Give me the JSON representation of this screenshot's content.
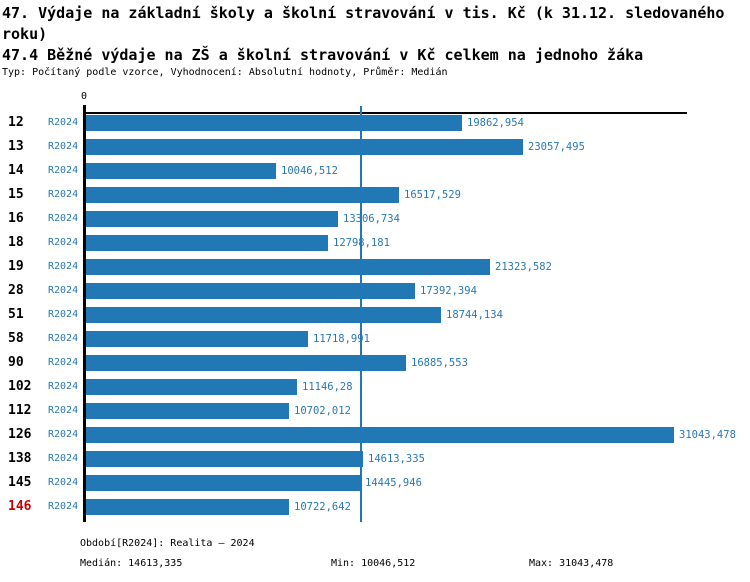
{
  "header": {
    "title_line1": "47. Výdaje na základní školy a školní stravování v tis. Kč (k 31.12. sledovaného",
    "title_line2": "roku)",
    "subtitle": "47.4 Běžné výdaje na ZŠ a školní stravování v Kč celkem na jednoho žáka",
    "meta": "Typ: Počítaný podle vzorce, Vyhodnocení: Absolutní hodnoty, Průměr: Medián"
  },
  "chart": {
    "zero_label": "0",
    "bar_color": "#2277b5",
    "text_color": "#2878b5",
    "highlight_color": "#cc0000",
    "axis_color": "#000000"
  },
  "chart_data": {
    "type": "bar",
    "orientation": "horizontal",
    "title": "47.4 Běžné výdaje na ZŠ a školní stravování v Kč celkem na jednoho žáka",
    "xlabel": "",
    "ylabel": "",
    "xlim": [
      0,
      31043.478
    ],
    "grid": false,
    "median": 14613.335,
    "min": 10046.512,
    "max": 31043.478,
    "series_name": "R2024",
    "categories": [
      "12",
      "13",
      "14",
      "15",
      "16",
      "18",
      "19",
      "28",
      "51",
      "58",
      "90",
      "102",
      "112",
      "126",
      "138",
      "145",
      "146"
    ],
    "rows": [
      {
        "id": "12",
        "period": "R2024",
        "value": 19862.954,
        "value_label": "19862,954",
        "highlight": false
      },
      {
        "id": "13",
        "period": "R2024",
        "value": 23057.495,
        "value_label": "23057,495",
        "highlight": false
      },
      {
        "id": "14",
        "period": "R2024",
        "value": 10046.512,
        "value_label": "10046,512",
        "highlight": false
      },
      {
        "id": "15",
        "period": "R2024",
        "value": 16517.529,
        "value_label": "16517,529",
        "highlight": false
      },
      {
        "id": "16",
        "period": "R2024",
        "value": 13306.734,
        "value_label": "13306,734",
        "highlight": false
      },
      {
        "id": "18",
        "period": "R2024",
        "value": 12798.181,
        "value_label": "12798,181",
        "highlight": false
      },
      {
        "id": "19",
        "period": "R2024",
        "value": 21323.582,
        "value_label": "21323,582",
        "highlight": false
      },
      {
        "id": "28",
        "period": "R2024",
        "value": 17392.394,
        "value_label": "17392,394",
        "highlight": false
      },
      {
        "id": "51",
        "period": "R2024",
        "value": 18744.134,
        "value_label": "18744,134",
        "highlight": false
      },
      {
        "id": "58",
        "period": "R2024",
        "value": 11718.991,
        "value_label": "11718,991",
        "highlight": false
      },
      {
        "id": "90",
        "period": "R2024",
        "value": 16885.553,
        "value_label": "16885,553",
        "highlight": false
      },
      {
        "id": "102",
        "period": "R2024",
        "value": 11146.28,
        "value_label": "11146,28",
        "highlight": false
      },
      {
        "id": "112",
        "period": "R2024",
        "value": 10702.012,
        "value_label": "10702,012",
        "highlight": false
      },
      {
        "id": "126",
        "period": "R2024",
        "value": 31043.478,
        "value_label": "31043,478",
        "highlight": false
      },
      {
        "id": "138",
        "period": "R2024",
        "value": 14613.335,
        "value_label": "14613,335",
        "highlight": false
      },
      {
        "id": "145",
        "period": "R2024",
        "value": 14445.946,
        "value_label": "14445,946",
        "highlight": false
      },
      {
        "id": "146",
        "period": "R2024",
        "value": 10722.642,
        "value_label": "10722,642",
        "highlight": true
      }
    ]
  },
  "footer": {
    "period_note": "Období[R2024]: Realita – 2024",
    "median_label": "Medián: 14613,335",
    "min_label": "Min: 10046,512",
    "max_label": "Max: 31043,478"
  }
}
